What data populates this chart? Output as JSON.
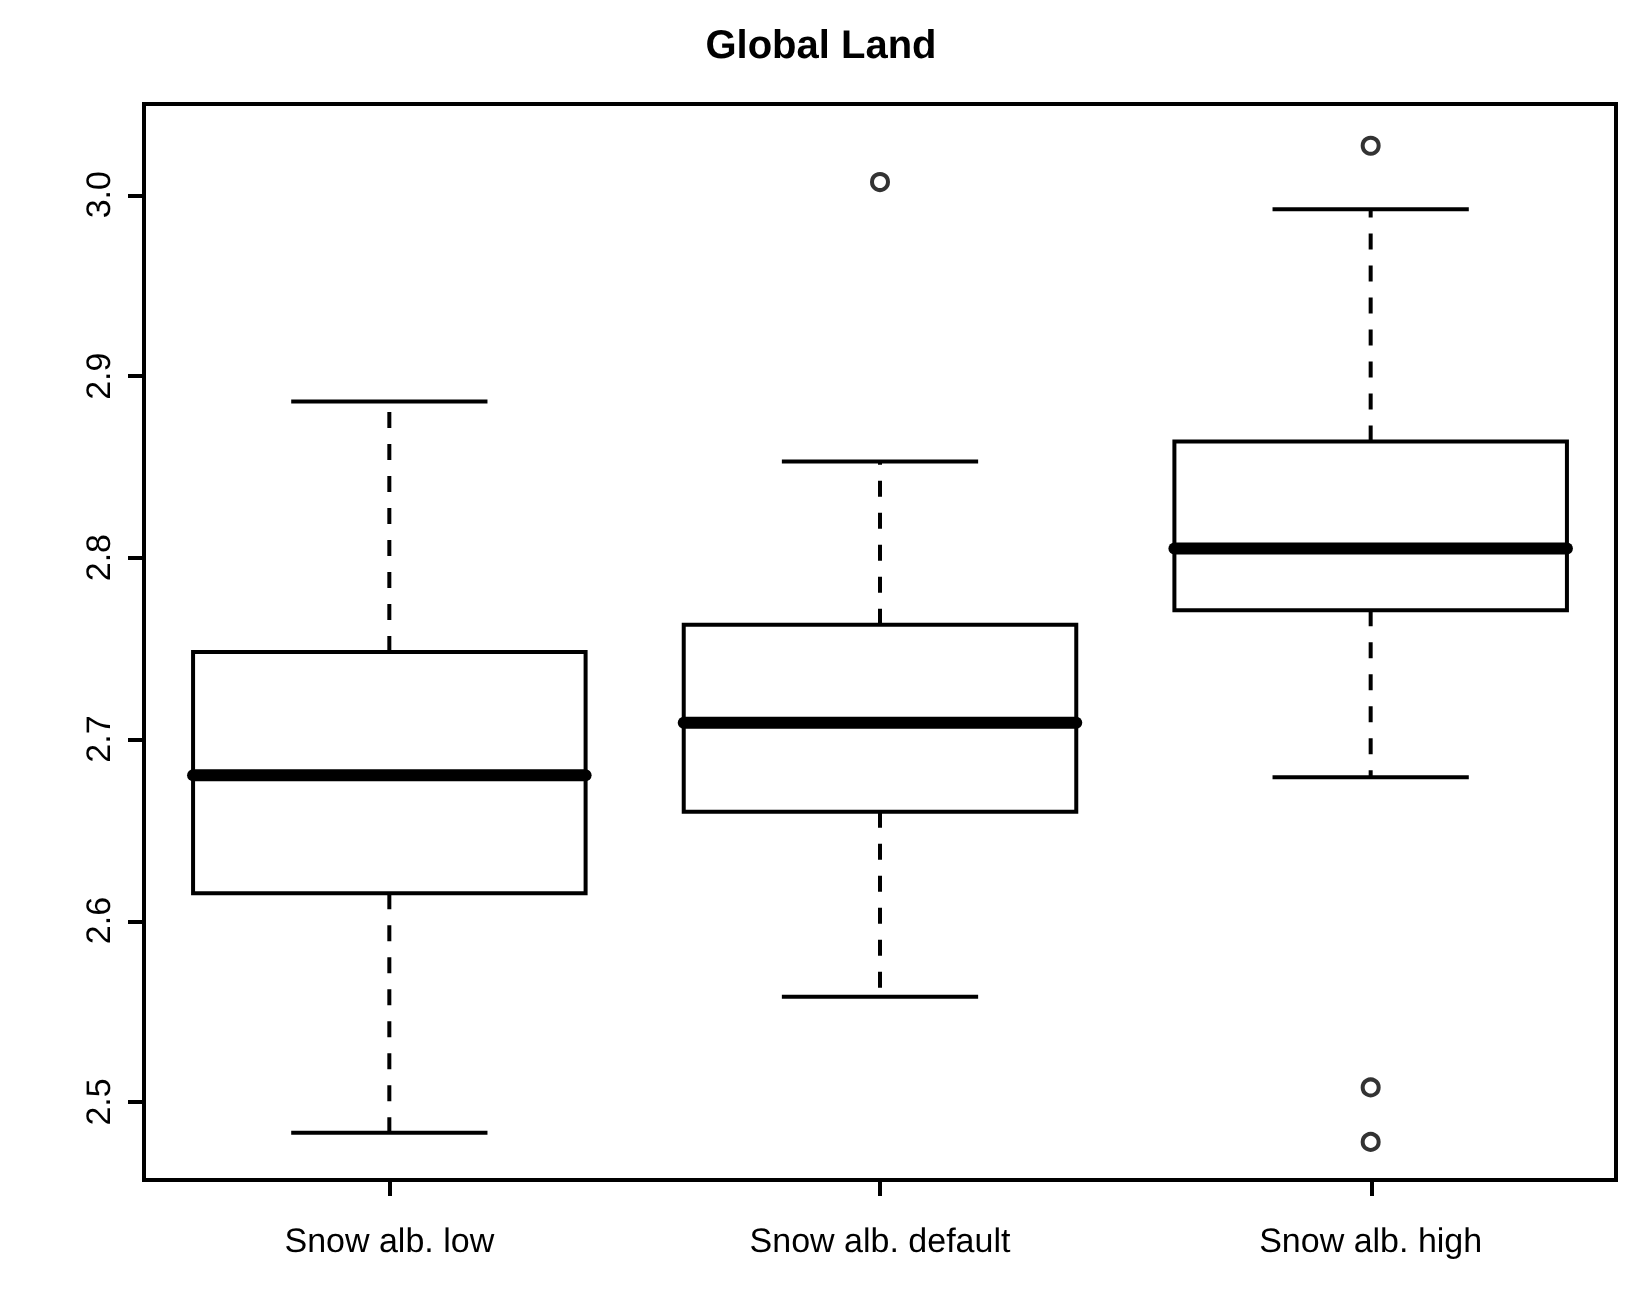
{
  "chart_data": {
    "type": "box",
    "title": "Global Land",
    "categories": [
      "Snow alb. low",
      "Snow alb. default",
      "Snow alb. high"
    ],
    "boxes": [
      {
        "low": 2.483,
        "q1": 2.615,
        "median": 2.68,
        "q3": 2.748,
        "high": 2.886
      },
      {
        "low": 2.558,
        "q1": 2.66,
        "median": 2.709,
        "q3": 2.763,
        "high": 2.853,
        "outliers": [
          3.007
        ]
      },
      {
        "low": 2.679,
        "q1": 2.771,
        "median": 2.805,
        "q3": 2.864,
        "high": 2.992,
        "outliers": [
          3.027,
          2.508,
          2.478
        ]
      }
    ],
    "color": "#000000",
    "ylim": [
      2.457,
      3.05
    ],
    "yticks": [
      2.5,
      2.6,
      2.7,
      2.8,
      2.9,
      {
        "value": 3,
        "label": "3.0"
      }
    ],
    "grid": false
  }
}
